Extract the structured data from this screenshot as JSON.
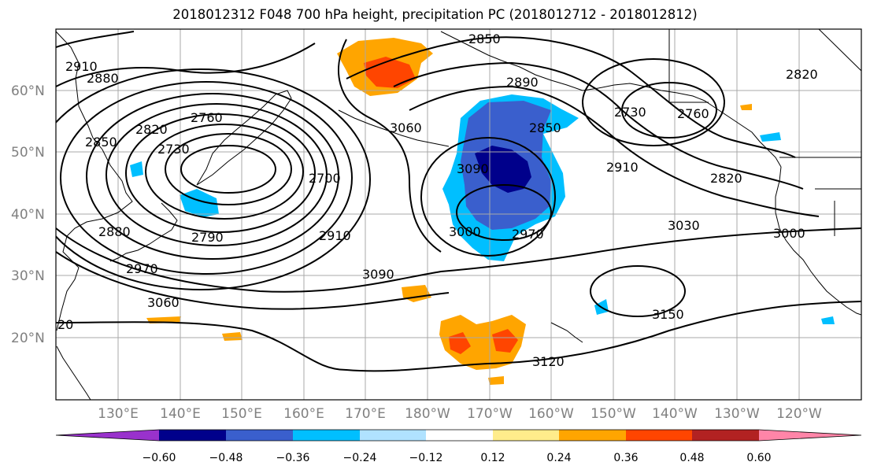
{
  "title": "2018012312 F048 700 hPa height, precipitation PC (2018012712 - 2018012812)",
  "map": {
    "lat_labels": [
      "60°N",
      "50°N",
      "40°N",
      "30°N",
      "20°N"
    ],
    "lon_labels": [
      "130°E",
      "140°E",
      "150°E",
      "160°E",
      "170°E",
      "180°W",
      "170°W",
      "160°W",
      "150°W",
      "140°W",
      "130°W",
      "120°W"
    ],
    "contour_labels": [
      "2910",
      "2880",
      "2850",
      "2820",
      "2760",
      "2730",
      "2790",
      "2880",
      "2970",
      "3060",
      "3090",
      "3060",
      "2910",
      "2700",
      "2850",
      "2890",
      "2850",
      "2730",
      "2760",
      "2820",
      "2910",
      "2820",
      "3030",
      "3000",
      "3090",
      "3000",
      "2970",
      "3150",
      "3120",
      "20"
    ]
  },
  "colorbar": {
    "ticks": [
      "−0.60",
      "−0.48",
      "−0.36",
      "−0.24",
      "−0.12",
      "0.12",
      "0.24",
      "0.36",
      "0.48",
      "0.60"
    ],
    "colors": [
      "#9932cc",
      "#00008b",
      "#3a5fcd",
      "#00bfff",
      "#b0e2ff",
      "#ffffff",
      "#ffec8b",
      "#ffa500",
      "#ff4500",
      "#b22222",
      "#ff85a8"
    ]
  }
}
